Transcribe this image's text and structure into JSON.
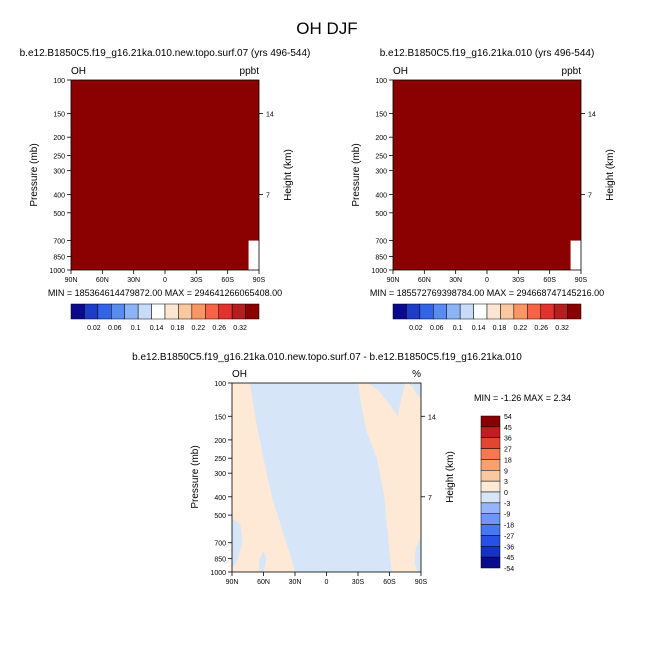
{
  "chart_data": {
    "type": "heatmap",
    "title": "OH DJF",
    "pressure_ticks": [
      "100",
      "150",
      "200",
      "250",
      "300",
      "400",
      "500",
      "700",
      "850",
      "1000"
    ],
    "pressure_levels": [
      100,
      150,
      200,
      250,
      300,
      400,
      500,
      700,
      850,
      1000
    ],
    "height_ticks": [
      "14",
      "7"
    ],
    "height_levels_km": [
      14,
      7
    ],
    "lat_ticks": [
      "90N",
      "60N",
      "30N",
      "0",
      "30S",
      "60S",
      "90S"
    ],
    "lat_values": [
      90,
      60,
      30,
      0,
      -30,
      -60,
      -90
    ],
    "xlim": [
      90,
      -90
    ],
    "ylim": [
      1000,
      100
    ],
    "panels": [
      {
        "id": "test",
        "subtitle": "b.e12.B1850C5.f19_g16.21ka.010.new.topo.surf.07 (yrs 496-544)",
        "left_label": "OH",
        "right_label": "ppbt",
        "ylabel": "Pressure (mb)",
        "ylabel_right": "Height (km)",
        "min_max": "MIN = 185364614479872.00   MAX = 294641266065408.00",
        "fill_color": "#8b0000",
        "no_data_steps_lat_p": [
          [
            -80,
            700
          ],
          [
            -83,
            800
          ],
          [
            -85,
            900
          ],
          [
            -88,
            975
          ]
        ],
        "colorbar_colors": [
          "#0a0a8c",
          "#1e3cc8",
          "#3264e6",
          "#5a8cf0",
          "#8cb4f5",
          "#c8dcfa",
          "#ffffff",
          "#fae6d2",
          "#fac8a0",
          "#fa9664",
          "#f56446",
          "#e1322d",
          "#b41e1e",
          "#8b0000"
        ],
        "colorbar_labels": [
          "0.02",
          "0.06",
          "0.1",
          "0.14",
          "0.18",
          "0.22",
          "0.26",
          "0.32"
        ]
      },
      {
        "id": "control",
        "subtitle": "b.e12.B1850C5.f19_g16.21ka.010 (yrs 496-544)",
        "left_label": "OH",
        "right_label": "ppbt",
        "ylabel": "Pressure (mb)",
        "ylabel_right": "Height (km)",
        "min_max": "MIN = 185572769398784.00   MAX = 294668747145216.00",
        "fill_color": "#8b0000",
        "no_data_steps_lat_p": [
          [
            -80,
            700
          ],
          [
            -83,
            800
          ],
          [
            -85,
            900
          ],
          [
            -88,
            975
          ]
        ],
        "colorbar_colors": [
          "#0a0a8c",
          "#1e3cc8",
          "#3264e6",
          "#5a8cf0",
          "#8cb4f5",
          "#c8dcfa",
          "#ffffff",
          "#fae6d2",
          "#fac8a0",
          "#fa9664",
          "#f56446",
          "#e1322d",
          "#b41e1e",
          "#8b0000"
        ],
        "colorbar_labels": [
          "0.02",
          "0.06",
          "0.1",
          "0.14",
          "0.18",
          "0.22",
          "0.26",
          "0.32"
        ]
      },
      {
        "id": "difference",
        "subtitle": "b.e12.B1850C5.f19_g16.21ka.010.new.topo.surf.07 - b.e12.B1850C5.f19_g16.21ka.010",
        "left_label": "OH",
        "right_label": "%",
        "ylabel": "Pressure (mb)",
        "ylabel_right": "Height (km)",
        "min_max": "MIN =  -1.26   MAX =   2.34",
        "background_value_range": [
          -3,
          0
        ],
        "background_color": "#d6e6f8",
        "positive_value_range": [
          0,
          3
        ],
        "positive_color": "#fde9d6",
        "colorbar_colors": [
          "#0a0a8c",
          "#1432c8",
          "#2850e6",
          "#4678f0",
          "#6e96f5",
          "#96b4fa",
          "#d6e6f8",
          "#fde9d6",
          "#fac8a0",
          "#faa070",
          "#f57850",
          "#e14632",
          "#c31e1e",
          "#8b0000"
        ],
        "colorbar_labels": [
          "54",
          "45",
          "36",
          "27",
          "18",
          "9",
          "3",
          "0",
          "-3",
          "-9",
          "-18",
          "-27",
          "-36",
          "-45",
          "-54"
        ]
      }
    ]
  }
}
